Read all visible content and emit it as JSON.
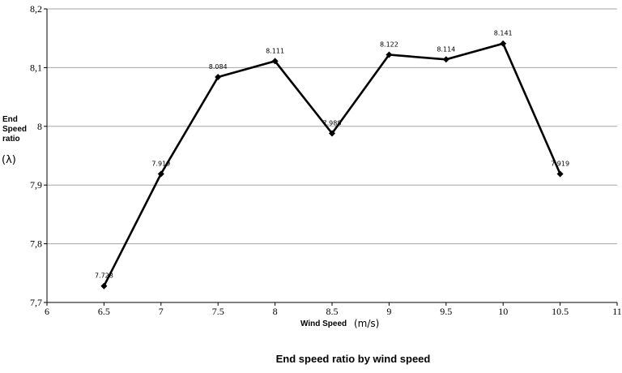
{
  "chart_data": {
    "type": "line",
    "title": "End speed ratio by wind speed",
    "xlabel": "Wind Speed",
    "xlabel_unit": "(m/s)",
    "ylabel_lines": [
      "End",
      "Speed",
      "ratio"
    ],
    "ylabel_symbol": "(λ)",
    "xlim": [
      6,
      11
    ],
    "ylim": [
      7.7,
      8.2
    ],
    "x_ticks": [
      "6",
      "6.5",
      "7",
      "7.5",
      "8",
      "8.5",
      "9",
      "9.5",
      "10",
      "10.5",
      "11"
    ],
    "y_ticks": [
      "7,7",
      "7,8",
      "7,9",
      "8",
      "8,1",
      "8,2"
    ],
    "grid": true,
    "series": [
      {
        "x": [
          6.5,
          7,
          7.5,
          8,
          8.5,
          9,
          9.5,
          10,
          10.5
        ],
        "values": [
          7.728,
          7.919,
          8.084,
          8.111,
          7.988,
          8.122,
          8.114,
          8.141,
          7.919
        ],
        "labels": [
          "7.728",
          "7.919",
          "8.084",
          "8.111",
          "7.988",
          "8.122",
          "8.114",
          "8.141",
          "7.919"
        ]
      }
    ]
  }
}
